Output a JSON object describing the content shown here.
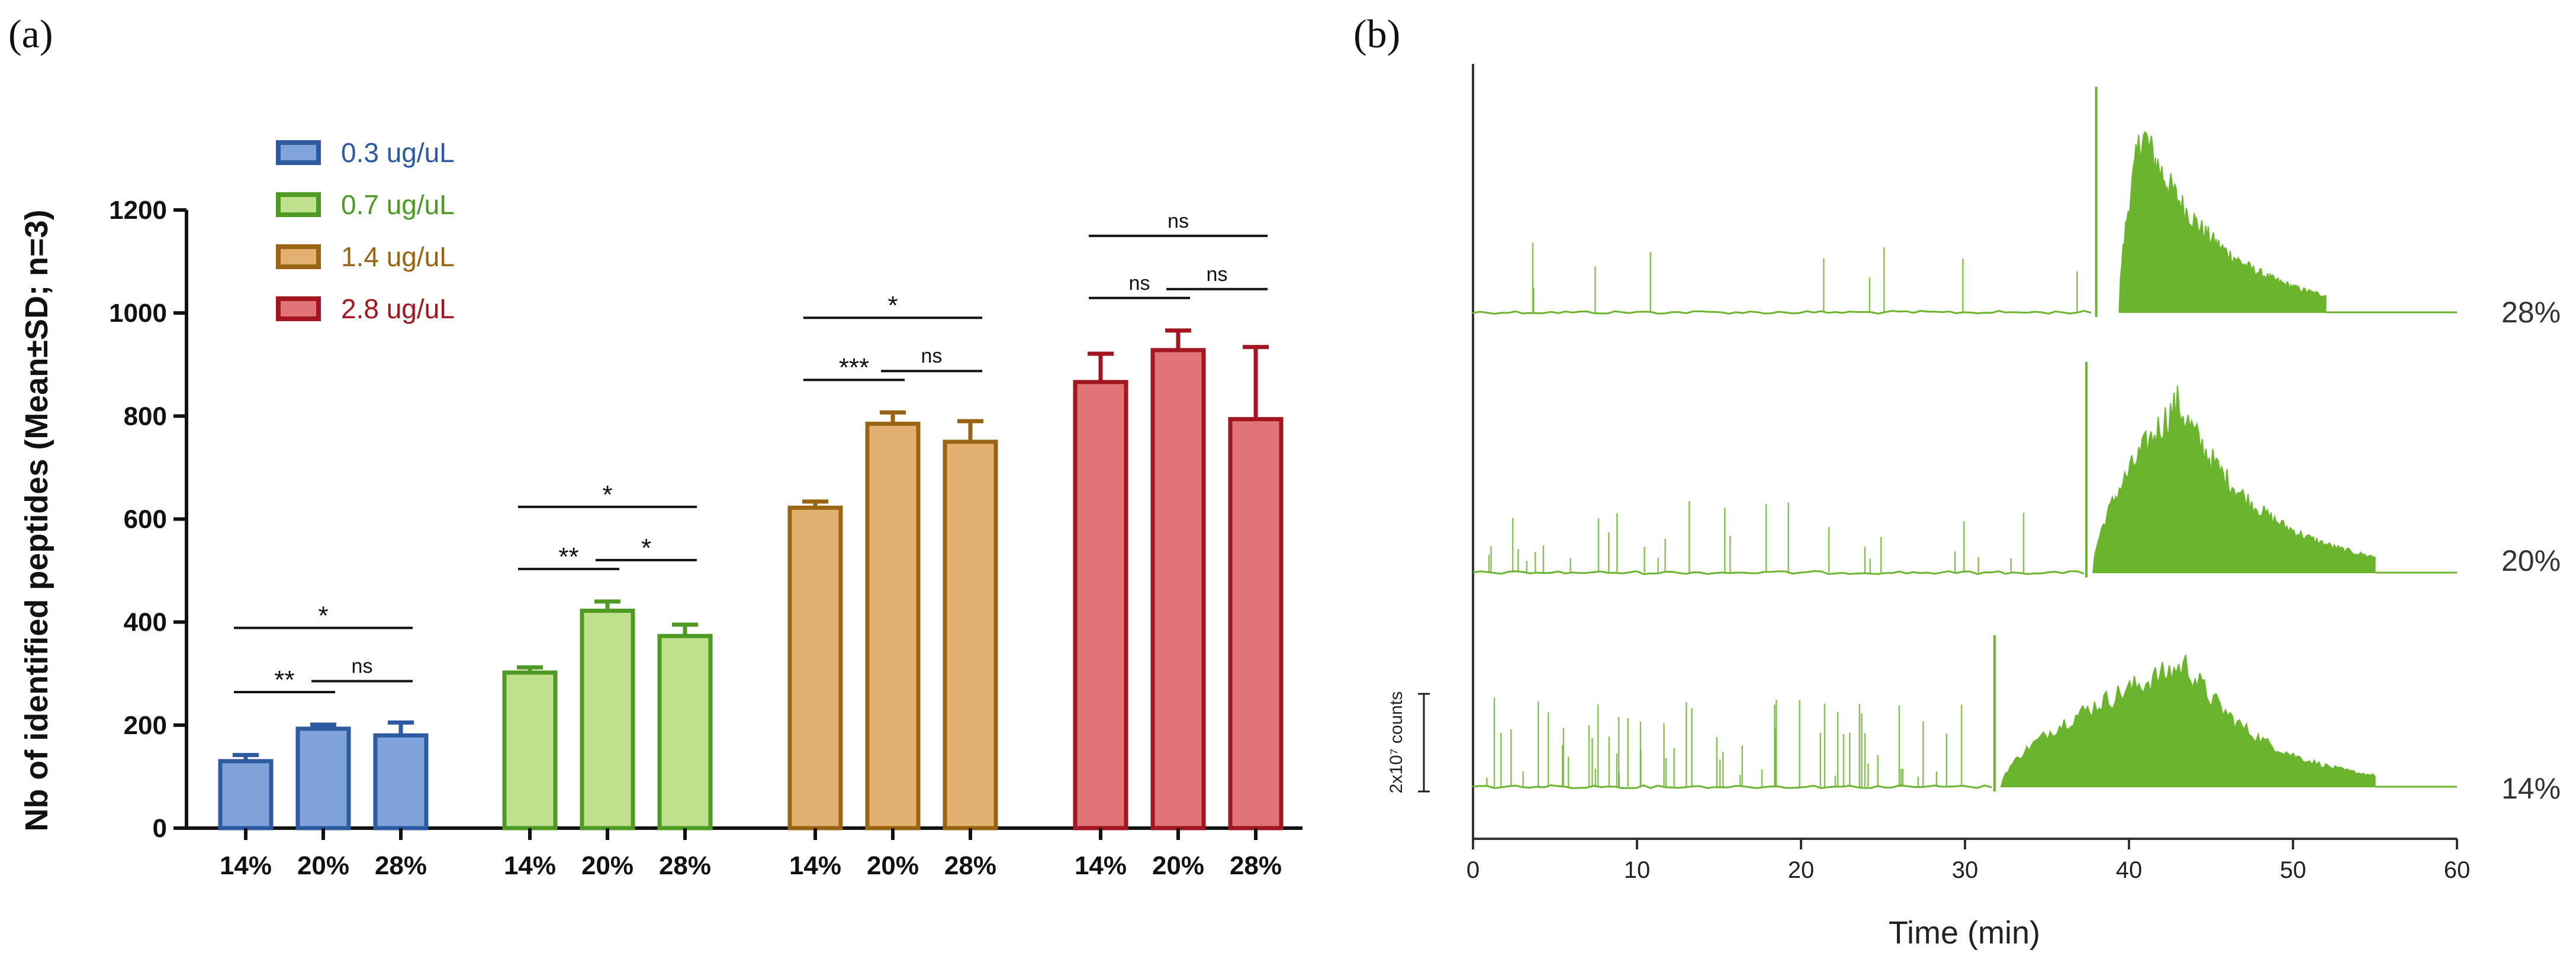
{
  "panel_a_label": "(a)",
  "panel_b_label": "(b)",
  "chart_data": [
    {
      "type": "bar",
      "ylabel": "Nb of identified peptides (Mean±SD; n=3)",
      "ylim": [
        0,
        1200
      ],
      "yticks": [
        0,
        200,
        400,
        600,
        800,
        1000,
        1200
      ],
      "categories": [
        "14%",
        "20%",
        "28%"
      ],
      "series": [
        {
          "name": "0.3 ug/uL",
          "color": "#2d5aa0",
          "fill": "#7fa3da",
          "values": [
            130,
            193,
            180
          ],
          "sd": [
            12,
            8,
            25
          ]
        },
        {
          "name": "0.7 ug/uL",
          "color": "#4f9a24",
          "fill": "#bfe08c",
          "values": [
            302,
            422,
            373
          ],
          "sd": [
            10,
            18,
            22
          ]
        },
        {
          "name": "1.4 ug/uL",
          "color": "#9a6415",
          "fill": "#e2b06f",
          "values": [
            622,
            785,
            750
          ],
          "sd": [
            12,
            22,
            40
          ]
        },
        {
          "name": "2.8 ug/uL",
          "color": "#a3161f",
          "fill": "#e07479",
          "values": [
            866,
            928,
            794
          ],
          "sd": [
            55,
            38,
            140
          ]
        }
      ],
      "significance": [
        {
          "group": 0,
          "from": 0,
          "to": 1,
          "label": "**"
        },
        {
          "group": 0,
          "from": 1,
          "to": 2,
          "label": "ns"
        },
        {
          "group": 0,
          "from": 0,
          "to": 2,
          "label": "*"
        },
        {
          "group": 1,
          "from": 0,
          "to": 1,
          "label": "**"
        },
        {
          "group": 1,
          "from": 1,
          "to": 2,
          "label": "*"
        },
        {
          "group": 1,
          "from": 0,
          "to": 2,
          "label": "*"
        },
        {
          "group": 2,
          "from": 0,
          "to": 1,
          "label": "***"
        },
        {
          "group": 2,
          "from": 1,
          "to": 2,
          "label": "ns"
        },
        {
          "group": 2,
          "from": 0,
          "to": 2,
          "label": "*"
        },
        {
          "group": 3,
          "from": 0,
          "to": 1,
          "label": "ns"
        },
        {
          "group": 3,
          "from": 1,
          "to": 2,
          "label": "ns"
        },
        {
          "group": 3,
          "from": 0,
          "to": 2,
          "label": "ns"
        }
      ]
    },
    {
      "type": "line",
      "xlabel": "Time (min)",
      "xlim": [
        0,
        60
      ],
      "xticks": [
        0,
        10,
        20,
        30,
        40,
        50,
        60
      ],
      "scale_bar": "2x10⁷ counts",
      "color": "#6bb42e",
      "series": [
        {
          "name": "28%",
          "onset": 38.0,
          "burst_start": 39.4,
          "peak_time": 40.8,
          "end": 52.0
        },
        {
          "name": "20%",
          "onset": 37.4,
          "burst_start": 37.8,
          "peak_time": 43.0,
          "end": 55.0
        },
        {
          "name": "14%",
          "onset": 31.8,
          "burst_start": 32.2,
          "peak_time": 43.5,
          "end": 55.0
        }
      ]
    }
  ]
}
